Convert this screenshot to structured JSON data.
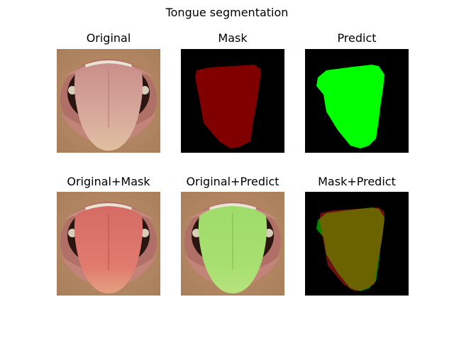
{
  "figure": {
    "title": "Tongue segmentation"
  },
  "panels": [
    {
      "title": "Original"
    },
    {
      "title": "Mask"
    },
    {
      "title": "Predict"
    },
    {
      "title": "Original+Mask"
    },
    {
      "title": "Original+Predict"
    },
    {
      "title": "Mask+Predict"
    }
  ],
  "colors": {
    "mask": "#800000",
    "predict": "#00ff00",
    "overlap": "#6b6200",
    "background": "#000000"
  }
}
